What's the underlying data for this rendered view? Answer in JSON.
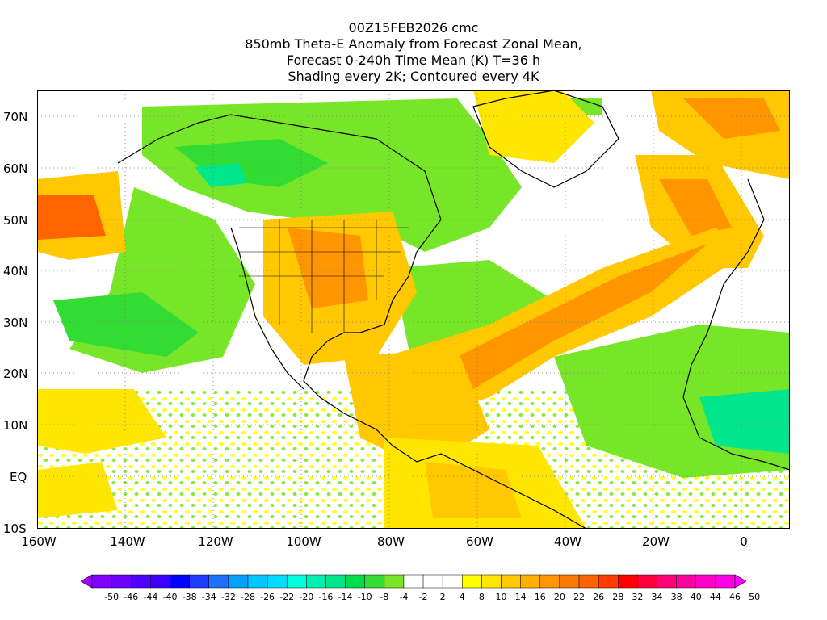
{
  "header": {
    "line1": "00Z15FEB2026 cmc",
    "line2": "850mb Theta-E Anomaly from Forecast Zonal Mean,",
    "line3": "Forecast 0-240h Time Mean (K) T=36 h",
    "line4": "Shading every 2K; Contoured every 4K"
  },
  "axes": {
    "lat_labels": [
      "70N",
      "60N",
      "50N",
      "40N",
      "30N",
      "20N",
      "10N",
      "EQ",
      "10S"
    ],
    "lon_labels": [
      "160W",
      "140W",
      "120W",
      "100W",
      "80W",
      "60W",
      "40W",
      "20W",
      "0"
    ]
  },
  "colorbar": {
    "labels": [
      "-50",
      "-46",
      "-44",
      "-40",
      "-38",
      "-34",
      "-32",
      "-28",
      "-26",
      "-22",
      "-20",
      "-16",
      "-14",
      "-10",
      "-8",
      "-4",
      "-2",
      "2",
      "4",
      "8",
      "10",
      "14",
      "16",
      "20",
      "22",
      "26",
      "28",
      "32",
      "34",
      "38",
      "40",
      "44",
      "46",
      "50"
    ],
    "colors": [
      "#a000ff",
      "#8200ff",
      "#6e00ff",
      "#5000ff",
      "#3c00ff",
      "#0000ff",
      "#1e3cff",
      "#1e6eff",
      "#00a0ff",
      "#00c8ff",
      "#00dcff",
      "#00ffdc",
      "#00f0b4",
      "#00e68c",
      "#00dc50",
      "#32dc32",
      "#78e628",
      "#ffffff",
      "#ffffff",
      "#ffffff",
      "#ffff00",
      "#ffe600",
      "#ffc800",
      "#ffaf00",
      "#ff9600",
      "#ff7800",
      "#ff6400",
      "#ff3c00",
      "#ff0000",
      "#ff003c",
      "#ff0078",
      "#ff00a0",
      "#ff00c8",
      "#ff00e6",
      "#ff00ff"
    ]
  }
}
